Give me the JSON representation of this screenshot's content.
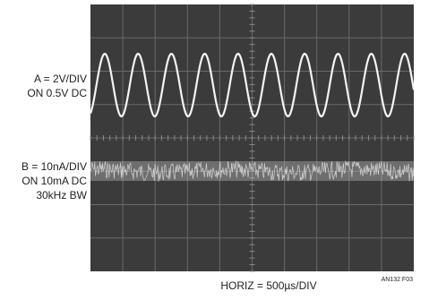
{
  "channel_a": {
    "scale": "A = 2V/DIV",
    "offset": "ON 0.5V DC"
  },
  "channel_b": {
    "scale": "B = 10nA/DIV",
    "offset": "ON 10mA DC",
    "bandwidth": "30kHz BW"
  },
  "horizontal": "HORIZ = 500µs/DIV",
  "figure_id": "AN132 F03"
}
